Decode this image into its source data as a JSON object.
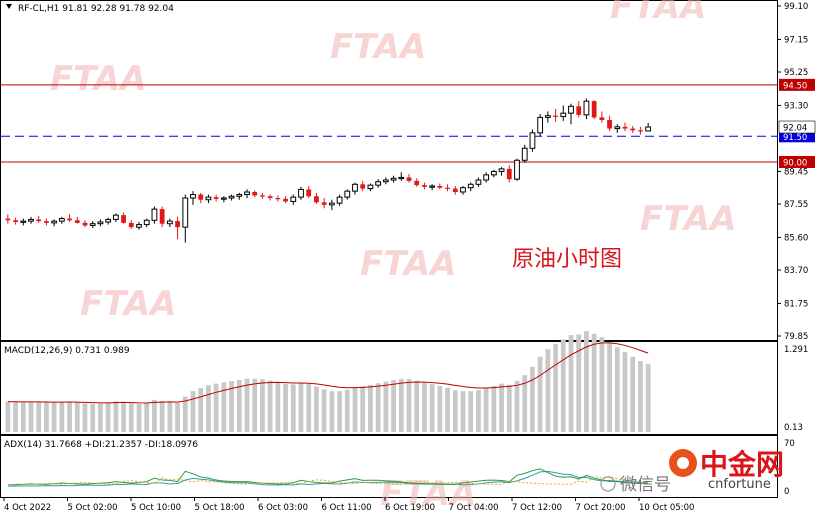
{
  "watermark": {
    "text": "FTAA"
  },
  "price_panel": {
    "header": "RF-CL,H1  91.81 92.28 91.78 92.04",
    "y_ticks": [
      "99.10",
      "97.15",
      "95.25",
      "93.30",
      "91.50",
      "89.45",
      "87.55",
      "85.60",
      "83.70",
      "81.75",
      "79.85"
    ],
    "levels": [
      {
        "value": 94.5,
        "label": "94.50",
        "color": "#c00000",
        "style": "solid"
      },
      {
        "value": 91.5,
        "label": "91.50",
        "color": "#0000dd",
        "style": "dashed"
      },
      {
        "value": 90.0,
        "label": "90.00",
        "color": "#c00000",
        "style": "solid"
      }
    ],
    "last_price_label": "92.04",
    "annotation": "原油小时图"
  },
  "macd_panel": {
    "header": "MACD(12,26,9) 0.731 0.989",
    "y_ticks": [
      "1.291",
      "0.13"
    ]
  },
  "adx_panel": {
    "header": "ADX(14) 31.7668 +DI:21.2357 -DI:18.0976",
    "y_ticks": [
      "70",
      "0"
    ]
  },
  "x_ticks": [
    "4 Oct 2022",
    "5 Oct 02:00",
    "5 Oct 10:00",
    "5 Oct 18:00",
    "6 Oct 03:00",
    "6 Oct 11:00",
    "6 Oct 19:00",
    "7 Oct 04:00",
    "7 Oct 12:00",
    "7 Oct 20:00",
    "10 Oct 05:00"
  ],
  "colors": {
    "up": "#000000",
    "down": "#e01818",
    "macd_hist": "#c8c8c8",
    "macd_signal": "#c00000",
    "adx": "#3a9aa8",
    "plus_di": "#2a9a3a",
    "minus_di": "#e8a020"
  },
  "logo": {
    "name": "中金网",
    "sub": "cnfortune",
    "wechat": "微信号"
  },
  "chart_data": {
    "type": "candlestick",
    "title": "RF-CL,H1",
    "ylim": [
      79.85,
      99.1
    ],
    "candles": [
      [
        86.7,
        86.95,
        86.4,
        86.6
      ],
      [
        86.6,
        86.75,
        86.35,
        86.5
      ],
      [
        86.5,
        86.7,
        86.3,
        86.55
      ],
      [
        86.55,
        86.8,
        86.4,
        86.65
      ],
      [
        86.65,
        86.85,
        86.45,
        86.55
      ],
      [
        86.55,
        86.7,
        86.3,
        86.45
      ],
      [
        86.45,
        86.65,
        86.25,
        86.55
      ],
      [
        86.55,
        86.8,
        86.4,
        86.7
      ],
      [
        86.7,
        86.95,
        86.5,
        86.6
      ],
      [
        86.6,
        86.8,
        86.4,
        86.45
      ],
      [
        86.45,
        86.6,
        86.2,
        86.3
      ],
      [
        86.3,
        86.55,
        86.15,
        86.4
      ],
      [
        86.4,
        86.65,
        86.25,
        86.5
      ],
      [
        86.5,
        86.75,
        86.35,
        86.65
      ],
      [
        86.65,
        87.0,
        86.5,
        86.9
      ],
      [
        86.9,
        87.05,
        86.4,
        86.45
      ],
      [
        86.45,
        86.6,
        86.1,
        86.2
      ],
      [
        86.2,
        86.5,
        86.05,
        86.35
      ],
      [
        86.35,
        86.7,
        86.2,
        86.6
      ],
      [
        86.6,
        87.4,
        86.4,
        87.25
      ],
      [
        87.25,
        87.4,
        86.2,
        86.4
      ],
      [
        86.4,
        86.7,
        86.2,
        86.55
      ],
      [
        86.55,
        86.8,
        85.5,
        86.2
      ],
      [
        86.2,
        88.1,
        85.3,
        87.9
      ],
      [
        87.9,
        88.3,
        87.5,
        88.1
      ],
      [
        88.1,
        88.2,
        87.6,
        87.8
      ],
      [
        87.8,
        88.1,
        87.6,
        87.95
      ],
      [
        87.95,
        88.1,
        87.7,
        87.85
      ],
      [
        87.85,
        88.0,
        87.65,
        87.9
      ],
      [
        87.9,
        88.1,
        87.75,
        88.0
      ],
      [
        88.0,
        88.2,
        87.8,
        88.1
      ],
      [
        88.1,
        88.4,
        87.9,
        88.25
      ],
      [
        88.25,
        88.35,
        87.95,
        88.05
      ],
      [
        88.05,
        88.2,
        87.85,
        88.0
      ],
      [
        88.0,
        88.1,
        87.75,
        87.9
      ],
      [
        87.9,
        88.05,
        87.7,
        87.85
      ],
      [
        87.85,
        88.0,
        87.6,
        87.7
      ],
      [
        87.7,
        88.1,
        87.5,
        87.95
      ],
      [
        87.95,
        88.55,
        87.8,
        88.4
      ],
      [
        88.4,
        88.6,
        87.9,
        88.0
      ],
      [
        88.0,
        88.2,
        87.55,
        87.65
      ],
      [
        87.65,
        87.9,
        87.3,
        87.5
      ],
      [
        87.5,
        87.8,
        87.2,
        87.6
      ],
      [
        87.6,
        88.1,
        87.45,
        87.95
      ],
      [
        87.95,
        88.4,
        87.8,
        88.3
      ],
      [
        88.3,
        88.8,
        88.1,
        88.7
      ],
      [
        88.7,
        88.9,
        88.3,
        88.45
      ],
      [
        88.45,
        88.75,
        88.3,
        88.65
      ],
      [
        88.65,
        89.0,
        88.5,
        88.85
      ],
      [
        88.85,
        89.1,
        88.7,
        88.95
      ],
      [
        88.95,
        89.2,
        88.8,
        89.05
      ],
      [
        89.05,
        89.4,
        88.9,
        89.1
      ],
      [
        89.1,
        89.3,
        88.8,
        88.9
      ],
      [
        88.9,
        89.05,
        88.55,
        88.65
      ],
      [
        88.65,
        88.8,
        88.4,
        88.55
      ],
      [
        88.55,
        88.7,
        88.35,
        88.6
      ],
      [
        88.6,
        88.75,
        88.4,
        88.5
      ],
      [
        88.5,
        88.7,
        88.3,
        88.45
      ],
      [
        88.45,
        88.6,
        88.1,
        88.25
      ],
      [
        88.25,
        88.6,
        88.1,
        88.5
      ],
      [
        88.5,
        88.8,
        88.3,
        88.7
      ],
      [
        88.7,
        89.1,
        88.55,
        88.95
      ],
      [
        88.95,
        89.4,
        88.8,
        89.25
      ],
      [
        89.25,
        89.55,
        89.1,
        89.45
      ],
      [
        89.45,
        89.7,
        89.2,
        89.6
      ],
      [
        89.6,
        89.8,
        88.8,
        89.0
      ],
      [
        89.0,
        90.2,
        88.9,
        90.1
      ],
      [
        90.1,
        91.0,
        89.95,
        90.8
      ],
      [
        90.8,
        91.9,
        90.6,
        91.7
      ],
      [
        91.7,
        92.8,
        91.5,
        92.6
      ],
      [
        92.6,
        92.95,
        92.3,
        92.7
      ],
      [
        92.7,
        93.1,
        92.35,
        92.65
      ],
      [
        92.65,
        93.3,
        92.4,
        92.85
      ],
      [
        92.85,
        93.4,
        92.2,
        93.25
      ],
      [
        93.25,
        93.55,
        92.6,
        92.75
      ],
      [
        92.75,
        93.7,
        92.5,
        93.55
      ],
      [
        93.55,
        93.6,
        92.5,
        92.6
      ],
      [
        92.6,
        92.95,
        92.3,
        92.45
      ],
      [
        92.45,
        92.7,
        91.8,
        91.95
      ],
      [
        91.95,
        92.2,
        91.7,
        92.05
      ],
      [
        92.05,
        92.3,
        91.8,
        91.95
      ],
      [
        91.95,
        92.1,
        91.7,
        91.85
      ],
      [
        91.85,
        92.05,
        91.6,
        91.8
      ],
      [
        91.81,
        92.28,
        91.78,
        92.04
      ]
    ]
  }
}
